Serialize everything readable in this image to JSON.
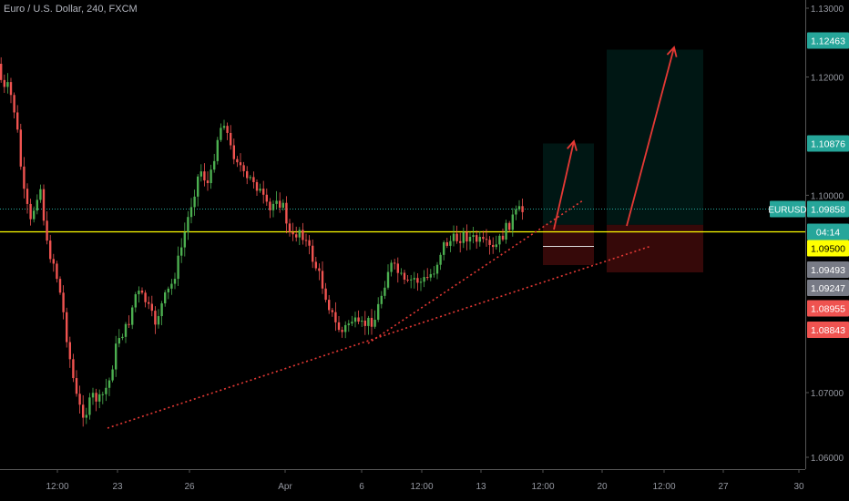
{
  "chart_title": "Euro / U.S. Dollar, 240, FXCM",
  "colors": {
    "background": "#000000",
    "axis_line": "#555555",
    "tick_text": "#9598a1",
    "candle_up": "#26a69a",
    "candle_up_body": "#4caf50",
    "candle_down": "#ef5350",
    "price_line": "#ffff00",
    "last_price_line": "#26a69a",
    "trendline": "#e53935",
    "arrow": "#e53935",
    "target_zone": "rgba(0,105,92,0.22)",
    "stop_zone": "rgba(120,20,20,0.45)",
    "badge_green": "#26a69a",
    "badge_yellow": "#ffff00",
    "badge_gray": "#787b86",
    "badge_red": "#ef5350"
  },
  "chart_data": {
    "type": "candlestick",
    "title": "Euro / U.S. Dollar, 240, FXCM",
    "symbol": "EURUSD",
    "ylim": [
      1.056,
      1.132
    ],
    "y_ticks": [
      "1.13000",
      "1.12000",
      "1.10000",
      "1.07000",
      "1.06000"
    ],
    "x_ticks": [
      "12:00",
      "23",
      "26",
      "Apr",
      "6",
      "12:00",
      "13",
      "12:00",
      "20",
      "12:00",
      "27",
      "30"
    ],
    "price_line": 1.095,
    "last_price": 1.09858,
    "candles_description": "4-hour EURUSD candles from ~Mar 19 to ~Apr 15",
    "series": [
      {
        "name": "EURUSD",
        "values": [
          1.1225,
          1.1155,
          1.108,
          1.101,
          1.092,
          1.084,
          1.076,
          1.068,
          1.066,
          1.072,
          1.078,
          1.084,
          1.09,
          1.096,
          1.1,
          1.105,
          1.108,
          1.112,
          1.104,
          1.1,
          1.098,
          1.101,
          1.096,
          1.094,
          1.091,
          1.095,
          1.093,
          1.086,
          1.083,
          1.08,
          1.078,
          1.079,
          1.081,
          1.085,
          1.088,
          1.091,
          1.089,
          1.09,
          1.093,
          1.094,
          1.095,
          1.094,
          1.093,
          1.095,
          1.098
        ]
      }
    ],
    "trendlines": [
      {
        "name": "lower trendline",
        "from": [
          "Mar 23",
          1.0635
        ],
        "to": [
          "Apr 21",
          1.0925
        ]
      },
      {
        "name": "upper trendline",
        "from": [
          "Apr 6",
          1.0785
        ],
        "to": [
          "Apr 16",
          1.1
        ]
      }
    ],
    "positions": [
      {
        "entry": 1.095,
        "target": 1.10876,
        "stop": 1.09247
      },
      {
        "entry": 1.095,
        "target": 1.12463,
        "stop": 1.08955
      }
    ],
    "price_badges": [
      {
        "label": "1.12463",
        "value": 1.12463,
        "color": "green"
      },
      {
        "label": "1.10876",
        "value": 1.10876,
        "color": "green"
      },
      {
        "label": "1.09858",
        "value": 1.09858,
        "color": "green",
        "prefix": "EURUSD"
      },
      {
        "label": "04:14",
        "value": 1.0968,
        "color": "green"
      },
      {
        "label": "1.09500",
        "value": 1.095,
        "color": "yellow"
      },
      {
        "label": "1.09493",
        "value": 1.09493,
        "color": "gray"
      },
      {
        "label": "1.09247",
        "value": 1.09247,
        "color": "gray"
      },
      {
        "label": "1.08955",
        "value": 1.08955,
        "color": "red"
      },
      {
        "label": "1.08843",
        "value": 1.08843,
        "color": "red"
      }
    ]
  }
}
